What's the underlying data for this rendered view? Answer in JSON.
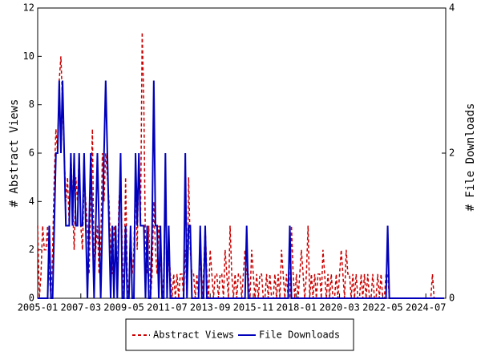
{
  "chart_data": {
    "type": "line",
    "ylabel": "# Abstract Views",
    "y2label": "# File Downloads",
    "x": [
      "2005-01",
      "2005-02",
      "2005-03",
      "2005-04",
      "2005-05",
      "2005-06",
      "2005-07",
      "2005-08",
      "2005-09",
      "2005-10",
      "2005-11",
      "2005-12",
      "2006-01",
      "2006-02",
      "2006-03",
      "2006-04",
      "2006-05",
      "2006-06",
      "2006-07",
      "2006-08",
      "2006-09",
      "2006-10",
      "2006-11",
      "2006-12",
      "2007-01",
      "2007-02",
      "2007-03",
      "2007-04",
      "2007-05",
      "2007-06",
      "2007-07",
      "2007-08",
      "2007-09",
      "2007-10",
      "2007-11",
      "2007-12",
      "2008-01",
      "2008-02",
      "2008-03",
      "2008-04",
      "2008-05",
      "2008-06",
      "2008-07",
      "2008-08",
      "2008-09",
      "2008-10",
      "2008-11",
      "2008-12",
      "2009-01",
      "2009-02",
      "2009-03",
      "2009-04",
      "2009-05",
      "2009-06",
      "2009-07",
      "2009-08",
      "2009-09",
      "2009-10",
      "2009-11",
      "2009-12",
      "2010-01",
      "2010-02",
      "2010-03",
      "2010-04",
      "2010-05",
      "2010-06",
      "2010-07",
      "2010-08",
      "2010-09",
      "2010-10",
      "2010-11",
      "2010-12",
      "2011-01",
      "2011-02",
      "2011-03",
      "2011-04",
      "2011-05",
      "2011-06",
      "2011-07",
      "2011-08",
      "2011-09",
      "2011-10",
      "2011-11",
      "2011-12",
      "2012-01",
      "2012-02",
      "2012-03",
      "2012-04",
      "2012-05",
      "2012-06",
      "2012-07",
      "2012-08",
      "2012-09",
      "2012-10",
      "2012-11",
      "2012-12",
      "2013-01",
      "2013-02",
      "2013-03",
      "2013-04",
      "2013-05",
      "2013-06",
      "2013-07",
      "2013-08",
      "2013-09",
      "2013-10",
      "2013-11",
      "2013-12",
      "2014-01",
      "2014-02",
      "2014-03",
      "2014-04",
      "2014-05",
      "2014-06",
      "2014-07",
      "2014-08",
      "2014-09",
      "2014-10",
      "2014-11",
      "2014-12",
      "2015-01",
      "2015-02",
      "2015-03",
      "2015-04",
      "2015-05",
      "2015-06",
      "2015-07",
      "2015-08",
      "2015-09",
      "2015-10",
      "2015-11",
      "2015-12",
      "2016-01",
      "2016-02",
      "2016-03",
      "2016-04",
      "2016-05",
      "2016-06",
      "2016-07",
      "2016-08",
      "2016-09",
      "2016-10",
      "2016-11",
      "2016-12",
      "2017-01",
      "2017-02",
      "2017-03",
      "2017-04",
      "2017-05",
      "2017-06",
      "2017-07",
      "2017-08",
      "2017-09",
      "2017-10",
      "2017-11",
      "2017-12",
      "2018-01",
      "2018-02",
      "2018-03",
      "2018-04",
      "2018-05",
      "2018-06",
      "2018-07",
      "2018-08",
      "2018-09",
      "2018-10",
      "2018-11",
      "2018-12",
      "2019-01",
      "2019-02",
      "2019-03",
      "2019-04",
      "2019-05",
      "2019-06",
      "2019-07",
      "2019-08",
      "2019-09",
      "2019-10",
      "2019-11",
      "2019-12",
      "2020-01",
      "2020-02",
      "2020-03",
      "2020-04",
      "2020-05",
      "2020-06",
      "2020-07",
      "2020-08",
      "2020-09",
      "2020-10",
      "2020-11",
      "2020-12",
      "2021-01",
      "2021-02",
      "2021-03",
      "2021-04",
      "2021-05",
      "2021-06",
      "2021-07",
      "2021-08",
      "2021-09",
      "2021-10",
      "2021-11",
      "2021-12",
      "2022-01",
      "2022-02",
      "2022-03",
      "2022-04",
      "2022-05",
      "2022-06",
      "2022-07",
      "2022-08",
      "2022-09",
      "2022-10",
      "2022-11",
      "2022-12",
      "2023-01",
      "2023-02",
      "2023-03",
      "2023-04",
      "2023-05",
      "2023-06",
      "2023-07",
      "2023-08",
      "2023-09",
      "2023-10",
      "2023-11",
      "2023-12",
      "2024-01",
      "2024-02",
      "2024-03",
      "2024-04",
      "2024-05",
      "2024-06",
      "2024-07",
      "2024-08",
      "2024-09",
      "2024-10",
      "2024-11",
      "2024-12",
      "2025-01",
      "2025-02",
      "2025-03",
      "2025-04",
      "2025-05",
      "2025-06"
    ],
    "xticks": [
      "2005-01",
      "2007-03",
      "2009-05",
      "2011-07",
      "2013-09",
      "2015-11",
      "2018-01",
      "2020-03",
      "2022-05",
      "2024-07"
    ],
    "series": [
      {
        "name": "Abstract Views",
        "color": "#cc0000",
        "dashed": true,
        "axis": "y",
        "values": [
          3,
          0,
          1,
          3,
          2,
          2,
          3,
          1,
          0,
          2,
          5,
          7,
          6,
          9,
          10,
          8,
          6,
          4,
          5,
          3,
          6,
          4,
          2,
          5,
          4,
          6,
          3,
          2,
          5,
          4,
          3,
          1,
          4,
          7,
          1,
          2,
          3,
          1,
          2,
          6,
          4,
          6,
          5,
          4,
          2,
          1,
          3,
          2,
          1,
          4,
          5,
          2,
          0,
          5,
          1,
          0,
          3,
          1,
          2,
          5,
          2,
          6,
          3,
          11,
          8,
          2,
          1,
          3,
          0,
          1,
          4,
          2,
          1,
          3,
          2,
          0,
          1,
          5,
          0,
          2,
          1,
          0,
          1,
          0,
          1,
          0,
          1,
          1,
          0,
          2,
          0,
          5,
          2,
          1,
          1,
          0,
          1,
          0,
          2,
          0,
          1,
          3,
          1,
          0,
          2,
          1,
          0,
          1,
          1,
          0,
          1,
          1,
          0,
          2,
          1,
          0,
          3,
          1,
          0,
          1,
          0,
          1,
          1,
          0,
          1,
          2,
          1,
          1,
          0,
          2,
          1,
          0,
          1,
          0,
          1,
          1,
          0,
          0,
          1,
          0,
          1,
          0,
          0,
          1,
          0,
          1,
          0,
          2,
          1,
          0,
          1,
          0,
          0,
          3,
          1,
          0,
          1,
          0,
          1,
          2,
          1,
          0,
          1,
          3,
          0,
          1,
          0,
          1,
          0,
          1,
          1,
          0,
          2,
          1,
          0,
          1,
          0,
          1,
          0,
          0,
          1,
          0,
          1,
          2,
          1,
          0,
          2,
          1,
          1,
          0,
          1,
          0,
          1,
          0,
          0,
          1,
          0,
          1,
          0,
          1,
          0,
          0,
          1,
          0,
          0,
          1,
          0,
          1,
          0,
          0,
          1,
          1,
          0,
          0,
          0,
          0,
          0,
          0,
          0,
          0,
          0,
          0,
          0,
          0,
          0,
          0,
          0,
          0,
          0,
          0,
          0,
          0,
          0,
          0,
          0,
          0,
          0,
          0,
          1,
          0,
          0,
          0,
          0,
          0,
          0,
          0
        ]
      },
      {
        "name": "File Downloads",
        "color": "#0000bb",
        "dashed": false,
        "axis": "y2",
        "values": [
          0,
          0,
          0,
          0,
          0,
          0,
          0,
          1,
          0,
          0,
          1,
          2,
          2,
          3,
          2,
          3,
          2,
          1,
          1,
          1,
          2,
          1,
          2,
          1,
          1,
          2,
          1,
          1,
          2,
          1,
          0,
          1,
          2,
          1,
          0,
          1,
          2,
          1,
          0,
          1,
          2,
          3,
          2,
          1,
          0,
          1,
          0,
          1,
          0,
          1,
          2,
          0,
          0,
          1,
          0,
          0,
          1,
          0,
          0,
          2,
          1,
          2,
          1,
          1,
          1,
          0,
          1,
          0,
          0,
          1,
          3,
          1,
          1,
          0,
          1,
          0,
          0,
          2,
          0,
          1,
          0,
          0,
          0,
          0,
          0,
          0,
          0,
          0,
          0,
          2,
          0,
          1,
          1,
          0,
          0,
          0,
          0,
          0,
          1,
          0,
          0,
          1,
          0,
          0,
          0,
          0,
          0,
          0,
          0,
          0,
          0,
          0,
          0,
          0,
          0,
          0,
          0,
          0,
          0,
          0,
          0,
          0,
          0,
          0,
          0,
          0,
          1,
          0,
          0,
          0,
          0,
          0,
          0,
          0,
          0,
          0,
          0,
          0,
          0,
          0,
          0,
          0,
          0,
          0,
          0,
          0,
          0,
          0,
          0,
          0,
          0,
          0,
          1,
          0,
          0,
          0,
          0,
          0,
          0,
          0,
          0,
          0,
          0,
          0,
          0,
          0,
          0,
          0,
          0,
          0,
          0,
          0,
          0,
          0,
          0,
          0,
          0,
          0,
          0,
          0,
          0,
          0,
          0,
          0,
          0,
          0,
          0,
          0,
          0,
          0,
          0,
          0,
          0,
          0,
          0,
          0,
          0,
          0,
          0,
          0,
          0,
          0,
          0,
          0,
          0,
          0,
          0,
          0,
          0,
          0,
          0,
          1,
          0,
          0,
          0,
          0,
          0,
          0,
          0,
          0,
          0,
          0,
          0,
          0,
          0,
          0,
          0,
          0,
          0,
          0,
          0,
          0,
          0,
          0,
          0,
          0,
          0,
          0,
          0,
          0,
          0,
          0,
          0,
          0,
          0,
          0
        ]
      }
    ],
    "ylim": [
      0,
      12
    ],
    "yticks": [
      0,
      2,
      4,
      6,
      8,
      10,
      12
    ],
    "y2lim": [
      0,
      4
    ],
    "y2ticks": [
      0,
      2,
      4
    ]
  }
}
